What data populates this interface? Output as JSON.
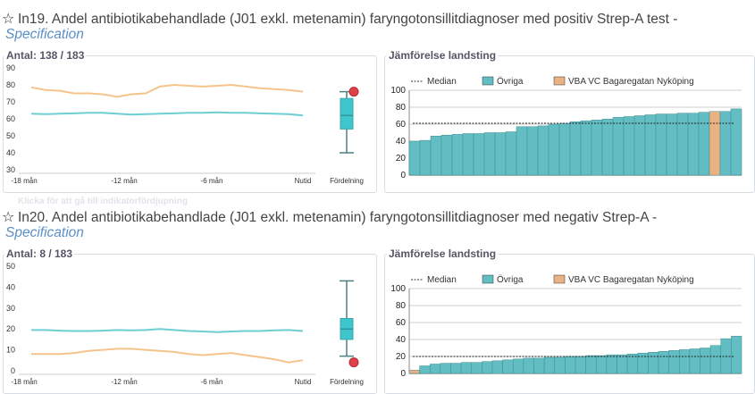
{
  "hint_text": "Klicka för att gå till indikatorfördjupning",
  "indicators": [
    {
      "title": "In19. Andel antibiotikabehandlade (J01 exkl. metenamin) faryngotonsillitdiagnoser med positiv Strep-A test -",
      "spec_link": "Specification",
      "trend_title": "Antal: 138 / 183",
      "compare_title": "Jämförelse landsting",
      "chart_data": [
        {
          "type": "line",
          "title": "Antal: 138 / 183",
          "ylim": [
            30,
            90
          ],
          "yticks": [
            30,
            40,
            50,
            60,
            70,
            80,
            90
          ],
          "xticks": [
            "-18 mån",
            "-12 mån",
            "-6 mån",
            "Nutid"
          ],
          "box_label": "Fördelning",
          "series": [
            {
              "color": "#f5c48a",
              "values": [
                78.5,
                77,
                76.5,
                75,
                75,
                74.5,
                73,
                74.5,
                75,
                79,
                80,
                79.5,
                79,
                79.5,
                80,
                79,
                78,
                77.5,
                77,
                76
              ]
            },
            {
              "color": "#6ecfd3",
              "values": [
                63,
                62.8,
                63,
                63.2,
                63.5,
                63.5,
                63,
                62.5,
                62.8,
                63,
                63.2,
                63.5,
                63.5,
                63.8,
                63.6,
                63.5,
                63.2,
                63,
                62.8,
                62
              ]
            }
          ],
          "box": {
            "min": 40,
            "q1": 54,
            "median": 62,
            "q3": 72,
            "max": 76,
            "marker": 76
          }
        },
        {
          "type": "bar",
          "title": "Jämförelse landsting",
          "ylim": [
            0,
            100
          ],
          "yticks": [
            0,
            20,
            40,
            60,
            80,
            100
          ],
          "median": 61,
          "legend": [
            "Median",
            "Övriga",
            "VBA VC Bagaregatan Nyköping"
          ],
          "highlight_index": 28,
          "colors": {
            "ovriga": "#62bec3",
            "highlight": "#eab183"
          },
          "values": [
            40,
            41,
            46,
            47,
            48,
            49,
            49,
            50,
            50,
            51,
            57,
            57,
            58,
            60,
            61,
            63,
            64,
            65,
            66,
            68,
            69,
            70,
            71,
            72,
            72,
            73,
            73,
            74,
            75,
            75,
            78
          ]
        }
      ]
    },
    {
      "title": "In20. Andel antibiotikabehandlade (J01 exkl. metenamin) faryngotonsillitdiagnoser med negativ Strep-A -",
      "spec_link": "Specification",
      "trend_title": "Antal: 8 / 183",
      "compare_title": "Jämförelse landsting",
      "chart_data": [
        {
          "type": "line",
          "title": "Antal: 8 / 183",
          "ylim": [
            0,
            50
          ],
          "yticks": [
            0,
            10,
            20,
            30,
            40,
            50
          ],
          "xticks": [
            "-18 mån",
            "-12 mån",
            "-6 mån",
            "Nutid"
          ],
          "box_label": "Fördelning",
          "series": [
            {
              "color": "#f5c48a",
              "values": [
                8,
                8,
                8,
                8.5,
                9.5,
                10,
                10.5,
                10.5,
                10,
                9.5,
                9,
                8,
                7.5,
                8,
                8.5,
                7.5,
                6.5,
                5.5,
                4,
                5
              ]
            },
            {
              "color": "#6ecfd3",
              "values": [
                19.5,
                19.5,
                19.2,
                19,
                19,
                19.2,
                19.5,
                19.3,
                19.5,
                20,
                19.5,
                19,
                18.8,
                18.5,
                18.8,
                19,
                19,
                19.3,
                19.5,
                19
              ]
            },
            {
              "color": "#6ecfd3",
              "values": []
            }
          ],
          "box": {
            "min": 7,
            "q1": 15,
            "median": 20,
            "q3": 25,
            "max": 43,
            "marker": 4
          }
        },
        {
          "type": "bar",
          "title": "Jämförelse landsting",
          "ylim": [
            0,
            100
          ],
          "yticks": [
            0,
            20,
            40,
            60,
            80,
            100
          ],
          "median": 20,
          "legend": [
            "Median",
            "Övriga",
            "VBA VC Bagaregatan Nyköping"
          ],
          "highlight_index": 0,
          "colors": {
            "ovriga": "#62bec3",
            "highlight": "#eab183"
          },
          "values": [
            4,
            9,
            11,
            12,
            12,
            13,
            13,
            14,
            15,
            16,
            17,
            18,
            18,
            19,
            19,
            20,
            20,
            21,
            21,
            22,
            22,
            23,
            24,
            25,
            26,
            27,
            28,
            29,
            30,
            33,
            41,
            44
          ]
        }
      ]
    }
  ]
}
